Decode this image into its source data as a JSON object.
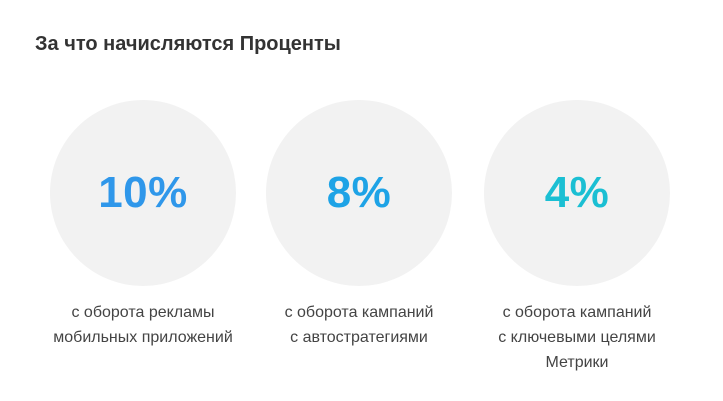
{
  "title": "За что начисляются Проценты",
  "stats": [
    {
      "value": "10%",
      "color": "#2f97ea",
      "caption_lines": [
        "с оборота рекламы",
        "мобильных приложений"
      ]
    },
    {
      "value": "8%",
      "color": "#1ea3e6",
      "caption_lines": [
        "с оборота кампаний",
        "с автостратегиями"
      ]
    },
    {
      "value": "4%",
      "color": "#1bbfd3",
      "caption_lines": [
        "с оборота кампаний",
        "с ключевыми целями",
        "Метрики"
      ]
    }
  ]
}
